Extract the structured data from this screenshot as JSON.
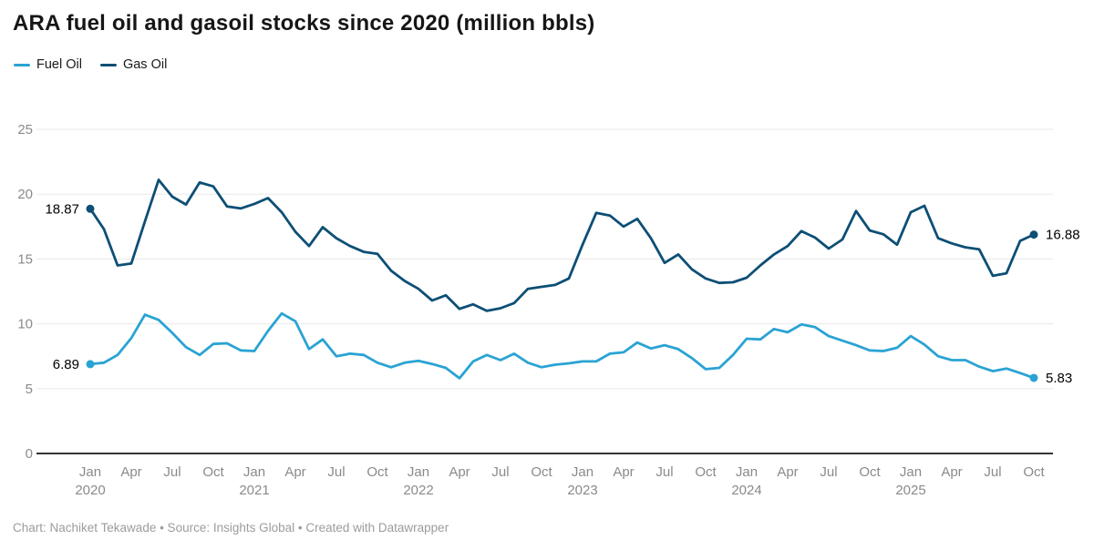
{
  "header": {
    "title": "ARA fuel oil and gasoil stocks since 2020 (million bbls)"
  },
  "legend": {
    "items": [
      {
        "label": "Fuel Oil",
        "color": "#2aa3d4"
      },
      {
        "label": "Gas Oil",
        "color": "#0d4f75"
      }
    ]
  },
  "footer": {
    "text": "Chart: Nachiket Tekawade • Source: Insights Global • Created with Datawrapper"
  },
  "colors": {
    "fuel_oil": "#2aa3d4",
    "gas_oil": "#0d4f75",
    "grid": "#e8e8e8",
    "baseline": "#333333",
    "axis_text": "#8a8a8a",
    "value_label_text": "#000000"
  },
  "chart_data": {
    "type": "line",
    "title": "ARA fuel oil and gasoil stocks since 2020 (million bbls)",
    "x_unit": "month",
    "x_start": "Jan 2020",
    "x_end": "Oct 2025",
    "x_tick_labels": [
      "Jan",
      "Apr",
      "Jul",
      "Oct"
    ],
    "years": [
      "2020",
      "2021",
      "2022",
      "2023",
      "2024",
      "2025"
    ],
    "ylim": [
      0,
      25
    ],
    "yticks": [
      0,
      5,
      10,
      15,
      20,
      25
    ],
    "grid": "horizontal",
    "legend_position": "top-left",
    "series": [
      {
        "name": "Fuel Oil",
        "color": "#2aa3d4",
        "start_label": "6.89",
        "end_label": "5.83",
        "values": [
          6.89,
          7.0,
          7.6,
          8.9,
          10.7,
          10.3,
          9.3,
          8.2,
          7.6,
          8.45,
          8.5,
          7.95,
          7.9,
          9.45,
          10.8,
          10.2,
          8.05,
          8.8,
          7.5,
          7.7,
          7.6,
          7.0,
          6.65,
          7.0,
          7.15,
          6.9,
          6.6,
          5.8,
          7.1,
          7.6,
          7.2,
          7.7,
          7.0,
          6.65,
          6.85,
          6.95,
          7.1,
          7.1,
          7.7,
          7.8,
          8.55,
          8.1,
          8.35,
          8.05,
          7.35,
          6.5,
          6.6,
          7.6,
          8.85,
          8.8,
          9.6,
          9.35,
          9.95,
          9.75,
          9.05,
          8.7,
          8.35,
          7.95,
          7.9,
          8.15,
          9.05,
          8.4,
          7.5,
          7.2,
          7.2,
          6.7,
          6.35,
          6.55,
          6.2,
          5.83
        ]
      },
      {
        "name": "Gas Oil",
        "color": "#0d4f75",
        "start_label": "18.87",
        "end_label": "16.88",
        "values": [
          18.87,
          17.3,
          14.5,
          14.65,
          17.9,
          21.1,
          19.8,
          19.2,
          20.9,
          20.6,
          19.05,
          18.9,
          19.25,
          19.7,
          18.6,
          17.1,
          16.0,
          17.45,
          16.6,
          16.0,
          15.55,
          15.4,
          14.1,
          13.3,
          12.7,
          11.8,
          12.2,
          11.15,
          11.5,
          11.0,
          11.2,
          11.6,
          12.7,
          12.85,
          13.0,
          13.5,
          16.1,
          18.55,
          18.35,
          17.5,
          18.1,
          16.6,
          14.7,
          15.35,
          14.2,
          13.5,
          13.15,
          13.2,
          13.55,
          14.5,
          15.35,
          16.0,
          17.15,
          16.65,
          15.8,
          16.5,
          18.7,
          17.2,
          16.9,
          16.1,
          18.6,
          19.1,
          16.6,
          16.2,
          15.9,
          15.75,
          13.7,
          13.9,
          16.4,
          16.88
        ]
      }
    ]
  }
}
